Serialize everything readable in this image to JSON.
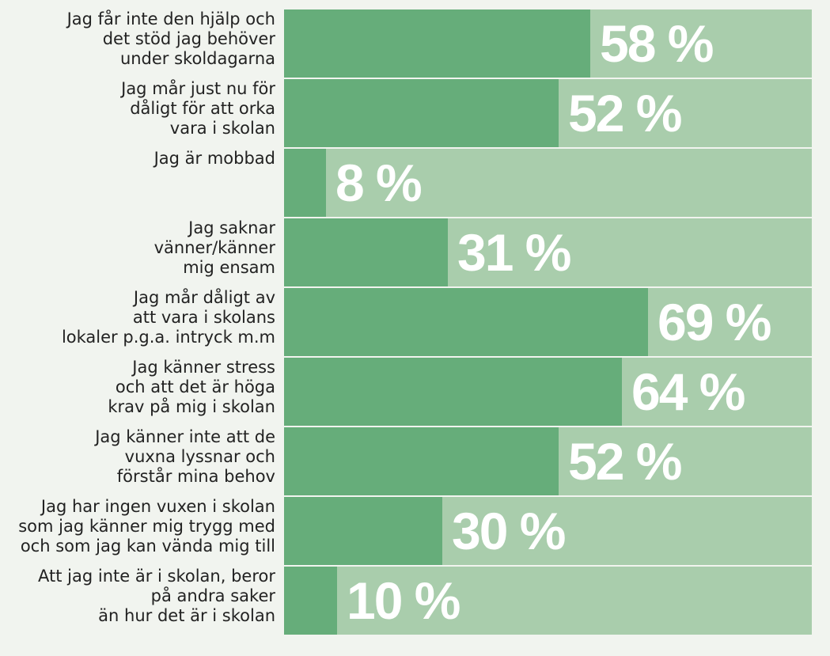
{
  "chart_data": {
    "type": "bar",
    "orientation": "horizontal",
    "unit": "%",
    "xlim": [
      0,
      100
    ],
    "grid": false,
    "colors": {
      "fill": "#66ad7a",
      "track": "#a9cdac",
      "value_text": "#ffffff",
      "label_text": "#222222",
      "background": "#f1f4ef"
    },
    "categories": [
      "Jag får inte den hjälp och\ndet stöd jag behöver\nunder skoldagarna",
      "Jag mår just nu för\ndåligt för att orka\nvara i skolan",
      "Jag är mobbad",
      "Jag saknar\nvänner/känner\nmig ensam",
      "Jag mår dåligt av\natt vara i skolans\nlokaler p.g.a. intryck m.m",
      "Jag känner stress\noch att det är höga\nkrav på mig i skolan",
      "Jag känner inte att de\nvuxna lyssnar och\nförstår mina behov",
      "Jag har ingen vuxen i skolan\nsom jag känner mig trygg med\noch som jag kan vända mig till",
      "Att jag inte är i skolan, beror\npå andra saker\nän hur det är i skolan"
    ],
    "values": [
      58,
      52,
      8,
      31,
      69,
      64,
      52,
      30,
      10
    ],
    "value_labels": [
      "58 %",
      "52 %",
      "8 %",
      "31 %",
      "69 %",
      "64 %",
      "52 %",
      "30 %",
      "10 %"
    ]
  }
}
